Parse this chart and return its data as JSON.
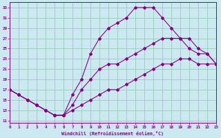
{
  "xlabel": "Windchill (Refroidissement éolien,°C)",
  "background_color": "#cce8f0",
  "grid_color": "#99ccbb",
  "line_color": "#880088",
  "x_ticks": [
    0,
    1,
    2,
    3,
    4,
    5,
    6,
    7,
    8,
    9,
    10,
    11,
    12,
    13,
    14,
    15,
    16,
    17,
    18,
    19,
    20,
    21,
    22,
    23
  ],
  "y_ticks": [
    11,
    13,
    15,
    17,
    19,
    21,
    23,
    25,
    27,
    29,
    31,
    33
  ],
  "xlim": [
    0,
    23
  ],
  "ylim": [
    10.5,
    34
  ],
  "line1_x": [
    0,
    1,
    2,
    3,
    4,
    5,
    6,
    7,
    8,
    9,
    10,
    11,
    12,
    13,
    14,
    15,
    16,
    17,
    18,
    19,
    20,
    21,
    22,
    23
  ],
  "line1_y": [
    17,
    16,
    15,
    14,
    13,
    12,
    12,
    13,
    14,
    15,
    16,
    17,
    17,
    18,
    19,
    20,
    21,
    22,
    22,
    23,
    23,
    22,
    22,
    22
  ],
  "line2_x": [
    0,
    1,
    2,
    3,
    4,
    5,
    6,
    7,
    8,
    9,
    10,
    11,
    12,
    13,
    14,
    15,
    16,
    17,
    18,
    19,
    20,
    21,
    22,
    23
  ],
  "line2_y": [
    17,
    16,
    15,
    14,
    13,
    12,
    12,
    16,
    19,
    24,
    27,
    29,
    30,
    31,
    33,
    33,
    33,
    31,
    29,
    27,
    25,
    24,
    24,
    22
  ],
  "line3_x": [
    0,
    1,
    2,
    3,
    4,
    5,
    6,
    7,
    8,
    9,
    10,
    11,
    12,
    13,
    14,
    15,
    16,
    17,
    18,
    19,
    20,
    21,
    22,
    23
  ],
  "line3_y": [
    17,
    16,
    15,
    14,
    13,
    12,
    12,
    14,
    17,
    19,
    21,
    22,
    22,
    23,
    24,
    25,
    26,
    27,
    27,
    27,
    27,
    25,
    24,
    22
  ]
}
